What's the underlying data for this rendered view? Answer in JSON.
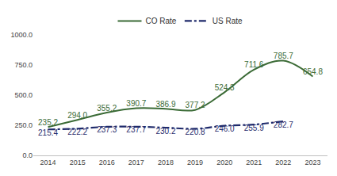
{
  "chart_data": {
    "type": "line",
    "categories": [
      "2014",
      "2015",
      "2016",
      "2017",
      "2018",
      "2019",
      "2020",
      "2021",
      "2022",
      "2023"
    ],
    "series": [
      {
        "name": "CO Rate",
        "color": "#3b6b36",
        "line_style": "solid",
        "values": [
          235.2,
          294.0,
          355.2,
          390.7,
          386.9,
          377.2,
          524.3,
          711.6,
          785.7,
          654.8
        ],
        "value_labels": [
          "235.2",
          "294.0",
          "355.2",
          "390.7",
          "386.9",
          "377.2",
          "524.3",
          "711.6",
          "785.7",
          "654.8"
        ]
      },
      {
        "name": "US Rate",
        "color": "#1f2a6b",
        "line_style": "dashdot",
        "values": [
          215.4,
          222.2,
          237.3,
          237.7,
          230.2,
          220.8,
          246.0,
          255.9,
          282.7,
          null
        ],
        "value_labels": [
          "215.4",
          "222.2",
          "237.3",
          "237.7",
          "230.2",
          "220.8",
          "246.0",
          "255.9",
          "282.7",
          null
        ]
      }
    ],
    "ylim": [
      0,
      1000
    ],
    "yticks": [
      {
        "value": 0,
        "label": "0.0"
      },
      {
        "value": 250,
        "label": "250.0"
      },
      {
        "value": 500,
        "label": "500.0"
      },
      {
        "value": 750,
        "label": "750.0"
      },
      {
        "value": 1000,
        "label": "1000.0"
      }
    ],
    "grid": false,
    "legend": "top",
    "data_labels": true
  }
}
